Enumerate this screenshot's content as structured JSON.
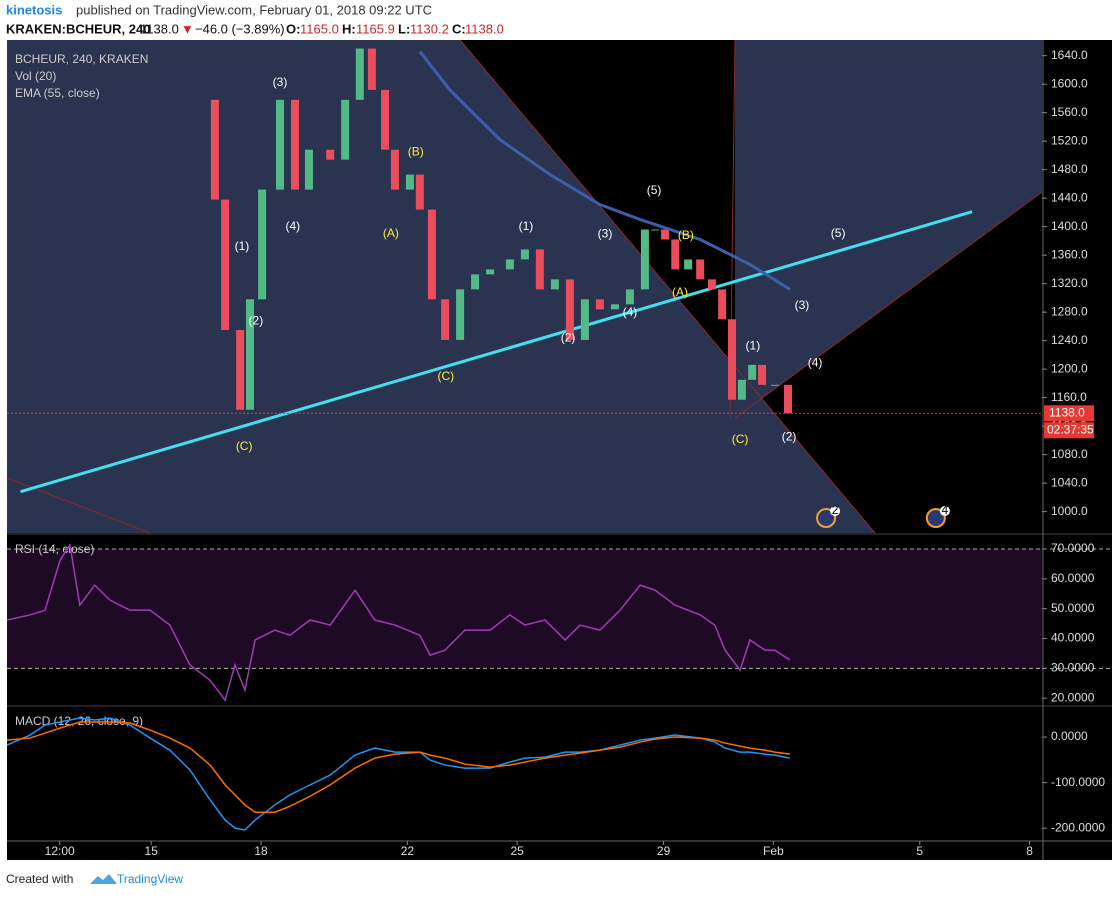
{
  "header": {
    "author": "kinetosis",
    "published": "published on TradingView.com, February 01, 2018 09:22 UTC",
    "symbol": "KRAKEN:BCHEUR, 240",
    "last": "1138.0",
    "arrow": "▼",
    "change": "−46.0 (−3.89%)",
    "o_label": "O:",
    "o": "1165.0",
    "h_label": "H:",
    "h": "1165.9",
    "l_label": "L:",
    "l": "1130.2",
    "c_label": "C:",
    "c": "1138.0"
  },
  "footer": {
    "created": "Created with",
    "brand": "TradingView"
  },
  "chart_data": [
    {
      "type": "candlestick",
      "title": "BCHEUR, 240, KRAKEN",
      "vol_label": "Vol (20)",
      "up_color": "#53b987",
      "down_color": "#eb4d5c",
      "x": [
        16.33,
        16.74,
        17.02,
        17.43,
        17.7,
        18.03,
        18.52,
        18.93,
        19.31,
        19.89,
        20.3,
        20.7,
        21.03,
        21.39,
        21.66,
        22.07,
        22.34,
        22.67,
        23.03,
        23.44,
        23.85,
        24.26,
        24.8,
        25.21,
        25.62,
        26.03,
        26.44,
        26.85,
        27.26,
        27.67,
        28.08,
        28.49,
        28.77,
        29.04,
        29.32,
        29.67,
        30.0,
        30.32,
        30.6,
        30.87,
        31.14,
        31.42,
        31.69,
        32.04,
        32.4
      ],
      "closes": [
        1578,
        1438,
        1255,
        1143,
        1298,
        1452,
        1578,
        1452,
        1508,
        1494,
        1578,
        1650,
        1592,
        1508,
        1452,
        1473,
        1424,
        1298,
        1241,
        1312,
        1333,
        1340,
        1354,
        1368,
        1312,
        1326,
        1241,
        1298,
        1284,
        1291,
        1312,
        1396,
        1396,
        1382,
        1340,
        1354,
        1326,
        1312,
        1270,
        1157,
        1185,
        1206,
        1178,
        1178,
        1138
      ],
      "series": [
        {
          "name": "EMA (55, close)",
          "color": "#3d5fa8",
          "x": [
            22.34,
            23.16,
            24.53,
            25.9,
            27.26,
            28.36,
            30.0,
            31.36,
            32.45
          ],
          "values": [
            1646,
            1592,
            1522,
            1473,
            1431,
            1410,
            1382,
            1347,
            1312
          ]
        }
      ],
      "trendline": {
        "color": "#40e0f0",
        "x": [
          11.43,
          37.43
        ],
        "values": [
          1028,
          1421
        ]
      },
      "annotations": [
        {
          "text": "(3)",
          "x": 18.52,
          "y": 1602,
          "color": "#ffffff"
        },
        {
          "text": "(4)",
          "x": 18.87,
          "y": 1400,
          "color": "#ffffff"
        },
        {
          "text": "(1)",
          "x": 17.48,
          "y": 1372,
          "color": "#ffffff"
        },
        {
          "text": "(2)",
          "x": 17.86,
          "y": 1267,
          "color": "#ffffff"
        },
        {
          "text": "(C)",
          "x": 17.54,
          "y": 1091,
          "color": "#ffeb3b"
        },
        {
          "text": "(B)",
          "x": 22.23,
          "y": 1504,
          "color": "#ffeb3b"
        },
        {
          "text": "(A)",
          "x": 21.55,
          "y": 1390,
          "color": "#ffeb3b"
        },
        {
          "text": "(C)",
          "x": 23.05,
          "y": 1189,
          "color": "#ffeb3b"
        },
        {
          "text": "(1)",
          "x": 25.24,
          "y": 1400,
          "color": "#ffffff"
        },
        {
          "text": "(3)",
          "x": 27.4,
          "y": 1389,
          "color": "#ffffff"
        },
        {
          "text": "(2)",
          "x": 26.39,
          "y": 1243,
          "color": "#ffffff"
        },
        {
          "text": "(4)",
          "x": 28.08,
          "y": 1279,
          "color": "#ffffff"
        },
        {
          "text": "(5)",
          "x": 28.74,
          "y": 1450,
          "color": "#ffffff"
        },
        {
          "text": "(B)",
          "x": 29.61,
          "y": 1387,
          "color": "#ffeb3b"
        },
        {
          "text": "(A)",
          "x": 29.45,
          "y": 1307,
          "color": "#ffeb3b"
        },
        {
          "text": "(1)",
          "x": 31.44,
          "y": 1232,
          "color": "#ffffff"
        },
        {
          "text": "(C)",
          "x": 31.09,
          "y": 1101,
          "color": "#ffeb3b"
        },
        {
          "text": "(2)",
          "x": 32.43,
          "y": 1104,
          "color": "#ffffff"
        },
        {
          "text": "(3)",
          "x": 32.78,
          "y": 1289,
          "color": "#ffffff"
        },
        {
          "text": "(4)",
          "x": 33.14,
          "y": 1208,
          "color": "#ffffff"
        },
        {
          "text": "(5)",
          "x": 33.77,
          "y": 1390,
          "color": "#ffffff"
        }
      ],
      "last_price": {
        "value": 1138,
        "label": "1138.0"
      },
      "countdown": "02:37:35",
      "events": [
        {
          "x": 33.44,
          "label": "2"
        },
        {
          "x": 36.44,
          "label": "4"
        }
      ],
      "xlim": [
        11.06,
        39.34
      ],
      "ylim": [
        970,
        1662
      ],
      "yticks": [
        {
          "value": 1000,
          "label": "1000.0"
        },
        {
          "value": 1040,
          "label": "1040.0"
        },
        {
          "value": 1080,
          "label": "1080.0"
        },
        {
          "value": 1120,
          "label": "1120.0"
        },
        {
          "value": 1160,
          "label": "1160.0"
        },
        {
          "value": 1200,
          "label": "1200.0"
        },
        {
          "value": 1240,
          "label": "1240.0"
        },
        {
          "value": 1280,
          "label": "1280.0"
        },
        {
          "value": 1320,
          "label": "1320.0"
        },
        {
          "value": 1360,
          "label": "1360.0"
        },
        {
          "value": 1400,
          "label": "1400.0"
        },
        {
          "value": 1440,
          "label": "1440.0"
        },
        {
          "value": 1480,
          "label": "1480.0"
        },
        {
          "value": 1520,
          "label": "1520.0"
        },
        {
          "value": 1560,
          "label": "1560.0"
        },
        {
          "value": 1600,
          "label": "1600.0"
        },
        {
          "value": 1640,
          "label": "1640.0"
        }
      ],
      "xticks": [
        {
          "value": 12.5,
          "label": "12:00"
        },
        15,
        18,
        22,
        25,
        29,
        {
          "value": 32,
          "label": "Feb"
        },
        {
          "value": 36,
          "label": "5"
        },
        {
          "value": 39,
          "label": "8"
        }
      ]
    },
    {
      "type": "line",
      "title": "RSI (14, close)",
      "bands": [
        30,
        70
      ],
      "band_color": "#1e0a24",
      "x": [
        11.06,
        11.69,
        12.1,
        12.51,
        12.78,
        13.05,
        13.46,
        13.87,
        14.42,
        14.97,
        15.51,
        16.06,
        16.61,
        17.02,
        17.29,
        17.56,
        17.84,
        18.38,
        18.79,
        19.34,
        19.89,
        20.57,
        21.11,
        21.66,
        22.34,
        22.62,
        23.03,
        23.57,
        24.26,
        24.8,
        25.21,
        25.76,
        26.31,
        26.72,
        27.26,
        27.81,
        28.36,
        28.77,
        29.31,
        30.0,
        30.4,
        30.68,
        31.09,
        31.36,
        31.77,
        32.04,
        32.45
      ],
      "series": [
        {
          "color": "#a23ab5",
          "values": [
            46.2,
            47.9,
            49.5,
            66.3,
            71.3,
            51.2,
            57.9,
            52.9,
            49.5,
            49.5,
            44.5,
            31.1,
            26.0,
            19.3,
            31.1,
            22.7,
            39.5,
            42.8,
            41.1,
            46.2,
            44.5,
            56.2,
            46.2,
            44.5,
            41.1,
            34.4,
            36.1,
            42.8,
            42.8,
            47.9,
            44.5,
            46.2,
            39.5,
            44.5,
            42.8,
            49.5,
            57.9,
            56.2,
            51.2,
            47.9,
            44.5,
            36.1,
            29.4,
            39.5,
            36.1,
            36.1,
            32.8
          ]
        }
      ],
      "xlim": [
        11.06,
        39.34
      ],
      "ylim": [
        17.7,
        74.7
      ],
      "yticks": [
        {
          "value": 20,
          "label": "20.0000"
        },
        {
          "value": 30,
          "label": "30.0000"
        },
        {
          "value": 40,
          "label": "40.0000"
        },
        {
          "value": 50,
          "label": "50.0000"
        },
        {
          "value": 60,
          "label": "60.0000"
        },
        {
          "value": 70,
          "label": "70.0000"
        }
      ]
    },
    {
      "type": "line",
      "title": "MACD (12, 26, close, 9)",
      "x": [
        11.06,
        11.69,
        12.1,
        12.51,
        12.78,
        13.05,
        13.46,
        13.87,
        14.42,
        14.97,
        15.51,
        16.06,
        16.61,
        17.02,
        17.29,
        17.56,
        17.84,
        18.38,
        18.79,
        19.34,
        19.89,
        20.57,
        21.11,
        21.66,
        22.34,
        22.62,
        23.03,
        23.57,
        24.26,
        24.8,
        25.21,
        25.76,
        26.31,
        26.72,
        27.26,
        27.81,
        28.36,
        28.77,
        29.31,
        30.0,
        30.4,
        30.68,
        31.09,
        31.36,
        31.77,
        32.04,
        32.45
      ],
      "series": [
        {
          "color": "#2196f3",
          "values": [
            -17.6,
            4.4,
            26.4,
            33,
            37.4,
            41.8,
            37.4,
            41.8,
            26.4,
            -2.2,
            -28.6,
            -72.5,
            -138,
            -182,
            -200,
            -204,
            -182,
            -149,
            -127,
            -105,
            -83.5,
            -39.6,
            -24.2,
            -33,
            -33,
            -50.5,
            -61.5,
            -68.1,
            -68.1,
            -54.9,
            -46.2,
            -44,
            -33,
            -33,
            -28.6,
            -17.6,
            -6.6,
            -2.2,
            4.4,
            -2.2,
            -11,
            -24.2,
            -33,
            -33,
            -37.4,
            -39.6,
            -46.2
          ]
        },
        {
          "color": "#ff6d00",
          "values": [
            -6.6,
            -2.2,
            8.8,
            19.8,
            26.4,
            33,
            33,
            33,
            30.8,
            15.4,
            -2.2,
            -24.2,
            -61.5,
            -105,
            -127,
            -149,
            -165,
            -165,
            -152,
            -130,
            -105,
            -68.1,
            -46.2,
            -37.4,
            -33,
            -39.6,
            -46.2,
            -59.3,
            -65.9,
            -61.5,
            -54.9,
            -46.2,
            -39.6,
            -35.2,
            -28.6,
            -22,
            -11,
            -4.4,
            0,
            -2.2,
            -6.6,
            -13.2,
            -19.8,
            -24.2,
            -28.6,
            -33,
            -37.4
          ]
        }
      ],
      "xlim": [
        11.06,
        39.34
      ],
      "ylim": [
        -226,
        66
      ],
      "yticks": [
        {
          "value": 0,
          "label": "0.0000"
        },
        {
          "value": -100,
          "label": "-100.0000"
        },
        {
          "value": -200,
          "label": "-200.0000"
        }
      ]
    }
  ]
}
